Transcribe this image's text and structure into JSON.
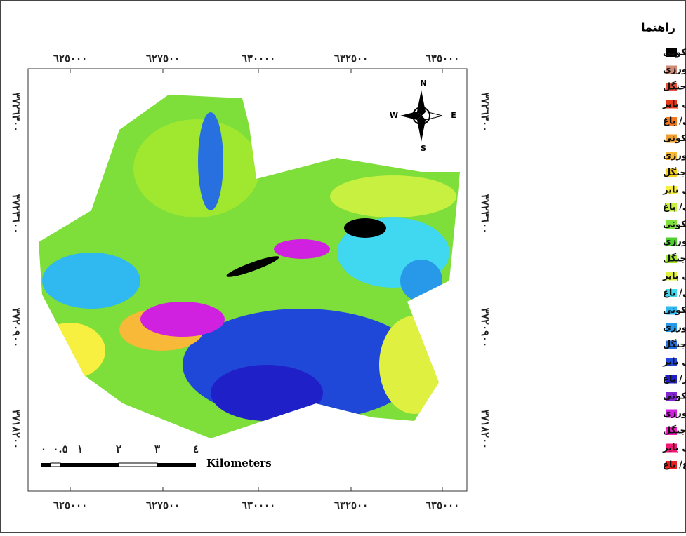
{
  "legend": {
    "title": "راهنما",
    "items": [
      {
        "label": "اراضی مسکونی/اراضی مسکونی",
        "color": "#000000"
      },
      {
        "label": "اراضی مسکونی/ کشاورزی",
        "color": "#d08a78"
      },
      {
        "label": "اراضی مسکونی/ جنگل",
        "color": "#e8503a"
      },
      {
        "label": "اراضی مسکونی/ اراضی بایر",
        "color": "#e83818"
      },
      {
        "label": "اراضی مسکونی/ باغ",
        "color": "#f07820"
      },
      {
        "label": "کشاورزی/ اراضی مسکونی",
        "color": "#f0a030"
      },
      {
        "label": "کشاورزی/ کشاورزی",
        "color": "#f8b838"
      },
      {
        "label": "کشاورزی/ جنگل",
        "color": "#f8d020"
      },
      {
        "label": "کشاورزی/ اراضی بایر",
        "color": "#f8f040"
      },
      {
        "label": "کشاورزی/ باغ",
        "color": "#c8f040"
      },
      {
        "label": "جنگل/ اراضی مسکونی",
        "color": "#80e040"
      },
      {
        "label": "جنگل/ کشاورزی",
        "color": "#50d030"
      },
      {
        "label": "جنگل/ جنگل",
        "color": "#a0e830"
      },
      {
        "label": "جنگل/ اراضی بایر",
        "color": "#e0f040"
      },
      {
        "label": "جنگل/ باغ",
        "color": "#40d8f0"
      },
      {
        "label": "اراضی بایر/ اراضی مسکونی",
        "color": "#30b8f0"
      },
      {
        "label": "اراضی بایر/ کشاورزی",
        "color": "#2898e8"
      },
      {
        "label": "اراضی بایر/ جنگل",
        "color": "#2870e0"
      },
      {
        "label": "اراضی بایر/ اراضی بایر",
        "color": "#2048d8"
      },
      {
        "label": "اراضی بایر/ باغ",
        "color": "#2020c8"
      },
      {
        "label": "باغ/ اراضی مسکونی",
        "color": "#8028d0"
      },
      {
        "label": "باغ/ کشاورزی",
        "color": "#d020e0"
      },
      {
        "label": "باغ/ جنگل",
        "color": "#f020c0"
      },
      {
        "label": "باغ/ اراضی بایر",
        "color": "#f01870"
      },
      {
        "label": "باغ/ باغ",
        "color": "#e82020"
      }
    ]
  },
  "axes": {
    "easting": [
      "٦٢٥٠٠٠",
      "٦٢٧٥٠٠",
      "٦٣٠٠٠٠",
      "٦٣٢٥٠٠",
      "٦٣٥٠٠٠"
    ],
    "northing": [
      "٣٧٢٦٣٠٠",
      "٣٧٢٣٦٠٠",
      "٣٧٢٠٩٠٠",
      "٣٧١٨٢٠٠"
    ]
  },
  "north_arrow": {
    "n": "N",
    "s": "S",
    "e": "E",
    "w": "W"
  },
  "scale_bar": {
    "labels": [
      "٠",
      "٠.٥",
      "١",
      "٢",
      "٣",
      "٤"
    ],
    "unit": "Kilometers"
  }
}
